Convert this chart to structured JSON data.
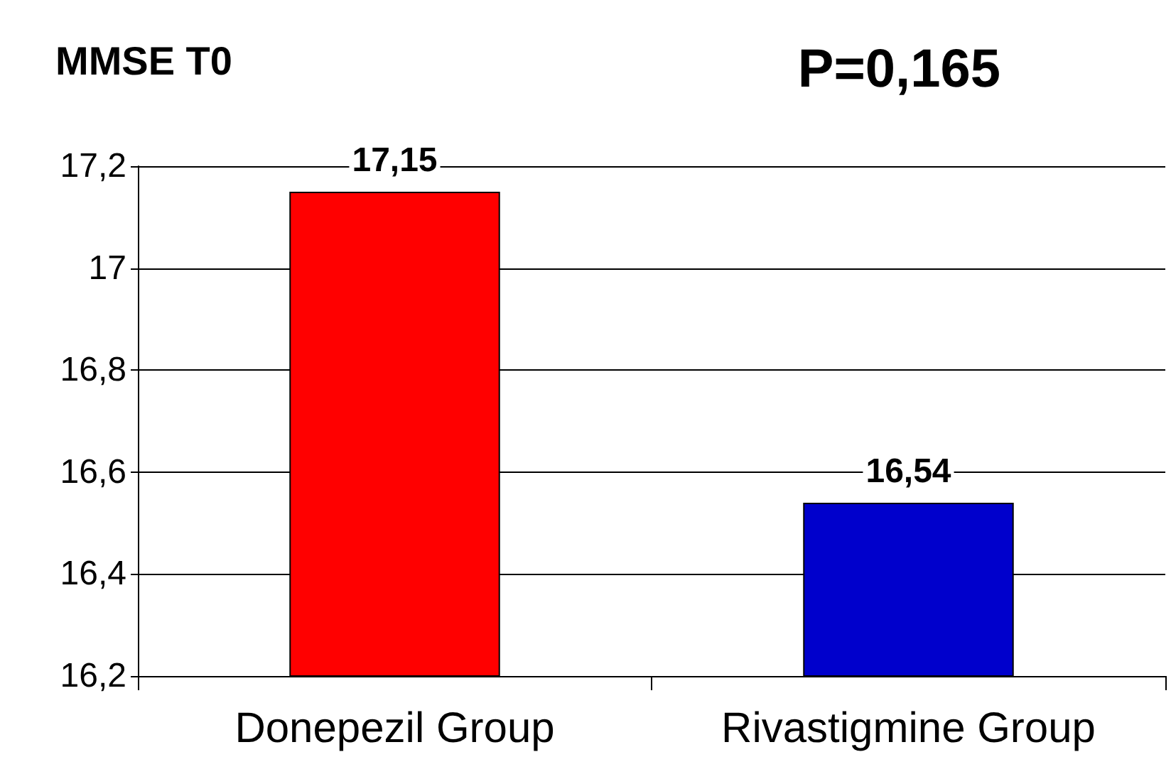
{
  "chart_data": {
    "type": "bar",
    "title": "MMSE T0",
    "categories": [
      "Donepezil Group",
      "Rivastigmine Group"
    ],
    "values": [
      17.15,
      16.54
    ],
    "colors": [
      "#ff0000",
      "#0000cc"
    ],
    "value_labels": [
      "17,15",
      "16,54"
    ],
    "ylim": [
      16.2,
      17.2
    ],
    "yticks": [
      {
        "value": 16.2,
        "label": "16,2"
      },
      {
        "value": 16.4,
        "label": "16,4"
      },
      {
        "value": 16.6,
        "label": "16,6"
      },
      {
        "value": 16.8,
        "label": "16,8"
      },
      17,
      {
        "value": 17.2,
        "label": "17,2"
      }
    ],
    "grid": "y",
    "annotations": [
      "P=0,165"
    ]
  }
}
